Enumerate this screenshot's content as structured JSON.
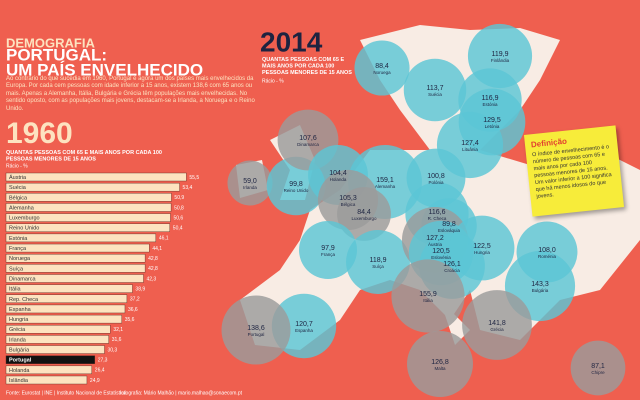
{
  "header": {
    "section": "DEMOGRAFIA",
    "title_lines": [
      "PORTUGAL:",
      "UM PAÍS ENVELHECIDO"
    ],
    "intro": "Ao contrário do que sucedia em 1960, Portugal é agora um dos países mais envelhecidos da Europa. Por cada cem pessoas com idade inferior a 15 anos, existem 138,6 com 65 anos ou mais. Apenas a Alemanha, Itália, Bulgária e Grécia têm populações mais envelhecidas. No sentido oposto, com as populações mais jovens, destacam-se a Irlanda, a Noruega e o Reino Unido."
  },
  "chart_data": [
    {
      "type": "hbar",
      "title": "1960",
      "subtitle": "QUANTAS PESSOAS COM 65 E MAIS ANOS POR CADA 100 PESSOAS MENORES DE 15 ANOS",
      "unit": "Rácio - %",
      "categories": [
        "Áustria",
        "Suécia",
        "Bélgica",
        "Alemanha",
        "Luxemburgo",
        "Reino Unido",
        "Estónia",
        "França",
        "Noruega",
        "Suíça",
        "Dinamarca",
        "Itália",
        "Rep. Checa",
        "Espanha",
        "Hungria",
        "Grécia",
        "Irlanda",
        "Bulgária",
        "Portugal",
        "Holanda",
        "Islândia"
      ],
      "values": [
        55.5,
        53.4,
        50.9,
        50.8,
        50.6,
        50.4,
        46.1,
        44.1,
        42.8,
        42.8,
        42.3,
        38.9,
        37.2,
        36.6,
        35.6,
        32.1,
        31.6,
        30.3,
        27.3,
        26.4,
        24.9
      ],
      "value_labels": [
        "55,5",
        "53,4",
        "50,9",
        "50,8",
        "50,6",
        "50,4",
        "46,1",
        "44,1",
        "42,8",
        "42,8",
        "42,3",
        "38,9",
        "37,2",
        "36,6",
        "35,6",
        "32,1",
        "31,6",
        "30,3",
        "27,3",
        "26,4",
        "24,9"
      ],
      "color": "#fde3c0",
      "highlight": {
        "category": "Portugal",
        "color": "#111111"
      }
    },
    {
      "type": "bubble-map",
      "title": "2014",
      "subtitle": "QUANTAS PESSOAS COM 65 E MAIS ANOS POR CADA 100 PESSOAS MENORES DE 15 ANOS",
      "unit": "Rácio - %",
      "categories": [
        "Irlanda",
        "Reino Unido",
        "Noruega",
        "Suécia",
        "Finlândia",
        "Estónia",
        "Letónia",
        "Lituânia",
        "Dinamarca",
        "Holanda",
        "Alemanha",
        "Polónia",
        "Bélgica",
        "Luxemburgo",
        "R. Checa",
        "Eslováquia",
        "França",
        "Suíça",
        "Áustria",
        "Eslovénia",
        "Hungria",
        "Croácia",
        "Roménia",
        "Bulgária",
        "Itália",
        "Espanha",
        "Portugal",
        "Grécia",
        "Malta",
        "Chipre"
      ],
      "values": [
        59.0,
        99.8,
        88.4,
        113.7,
        119.9,
        116.9,
        129.5,
        127.4,
        107.6,
        104.4,
        159.1,
        100.8,
        105.3,
        84.4,
        116.6,
        89.8,
        97.9,
        118.9,
        127.2,
        120.5,
        122.5,
        126.1,
        108.0,
        143.3,
        155.9,
        120.7,
        138.6,
        141.8,
        126.8,
        87.1
      ],
      "value_labels": [
        "59,0",
        "99,8",
        "88,4",
        "113,7",
        "119,9",
        "116,9",
        "129,5",
        "127,4",
        "107,6",
        "104,4",
        "159,1",
        "100,8",
        "105,3",
        "84,4",
        "116,6",
        "89,8",
        "97,9",
        "118,9",
        "127,2",
        "120,5",
        "122,5",
        "126,1",
        "108,0",
        "143,3",
        "155,9",
        "120,7",
        "138,6",
        "141,8",
        "126,8",
        "87,1"
      ],
      "colors": [
        "#9b9b9b",
        "#5cc6d6",
        "#5cc6d6",
        "#5cc6d6",
        "#5cc6d6",
        "#5cc6d6",
        "#5cc6d6",
        "#5cc6d6",
        "#9b9b9b",
        "#5cc6d6",
        "#5cc6d6",
        "#5cc6d6",
        "#9b9b9b",
        "#9b9b9b",
        "#5cc6d6",
        "#5cc6d6",
        "#5cc6d6",
        "#5cc6d6",
        "#9b9b9b",
        "#5cc6d6",
        "#5cc6d6",
        "#5cc6d6",
        "#5cc6d6",
        "#5cc6d6",
        "#9b9b9b",
        "#5cc6d6",
        "#9b9b9b",
        "#9b9b9b",
        "#9b9b9b",
        "#9b9b9b"
      ]
    }
  ],
  "definition": {
    "title": "Definição",
    "text": "O índice de envelhecimento é o número de pessoas com 65 e mais anos por cada 100 pessoas menores de 15 anos. Um valor inferior a 100 significa que há menos idosos do que jovens."
  },
  "footer": {
    "source": "Fonte: Eurostat | INE | Instituto Nacional de Estatística",
    "credit": "Infografia: Mário Malhão | mario.malhao@sonaecom.pt"
  }
}
